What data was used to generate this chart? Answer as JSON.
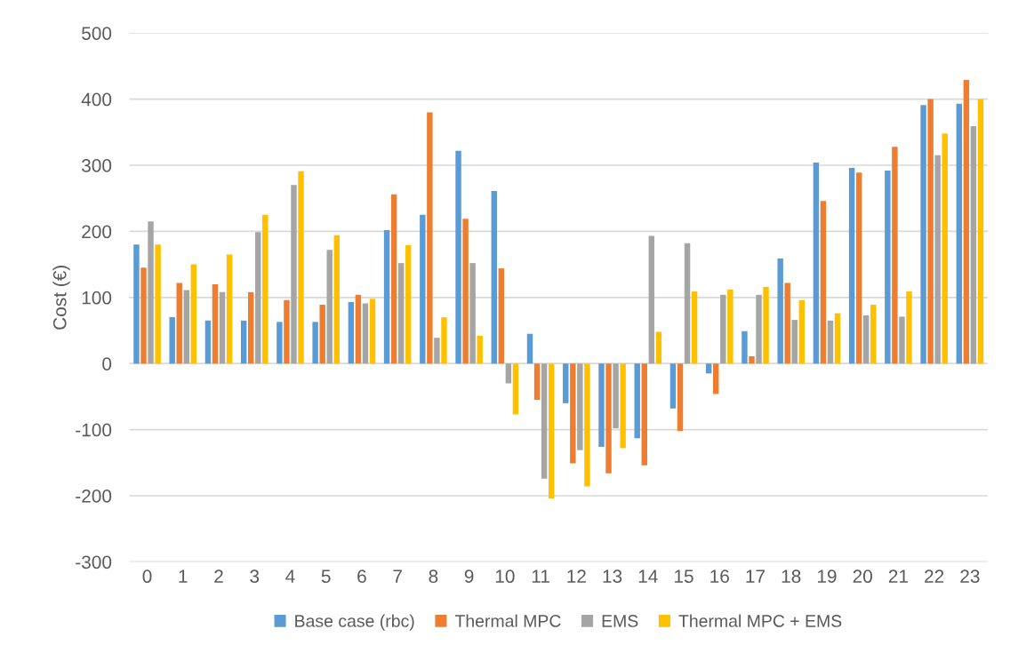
{
  "chart_data": {
    "type": "bar",
    "ylabel": "Cost (€)",
    "categories": [
      "0",
      "1",
      "2",
      "3",
      "4",
      "5",
      "6",
      "7",
      "8",
      "9",
      "10",
      "11",
      "12",
      "13",
      "14",
      "15",
      "16",
      "17",
      "18",
      "19",
      "20",
      "21",
      "22",
      "23"
    ],
    "series": [
      {
        "name": "Base case (rbc)",
        "color": "#5b9bd5",
        "values": [
          180,
          70,
          65,
          65,
          63,
          63,
          93,
          202,
          225,
          322,
          261,
          45,
          -60,
          -126,
          -113,
          -68,
          -15,
          49,
          159,
          304,
          296,
          292,
          391,
          393
        ]
      },
      {
        "name": "Thermal MPC",
        "color": "#ed7d31",
        "values": [
          145,
          122,
          120,
          108,
          96,
          89,
          104,
          256,
          380,
          219,
          144,
          -55,
          -151,
          -166,
          -154,
          -102,
          -46,
          11,
          122,
          246,
          289,
          328,
          400,
          429
        ]
      },
      {
        "name": "EMS",
        "color": "#a5a5a5",
        "values": [
          215,
          111,
          108,
          199,
          270,
          172,
          91,
          152,
          39,
          152,
          -30,
          -174,
          -131,
          -98,
          193,
          182,
          104,
          104,
          66,
          65,
          73,
          71,
          315,
          359
        ]
      },
      {
        "name": "Thermal MPC + EMS",
        "color": "#ffc000",
        "values": [
          180,
          150,
          165,
          225,
          291,
          194,
          98,
          179,
          70,
          42,
          -77,
          -204,
          -186,
          -128,
          48,
          109,
          112,
          116,
          96,
          76,
          89,
          109,
          348,
          400
        ]
      }
    ],
    "ylim": [
      -300,
      500
    ],
    "yticks": [
      -300,
      -200,
      -100,
      0,
      100,
      200,
      300,
      400,
      500
    ],
    "grid": "y",
    "legend": "bottom"
  }
}
